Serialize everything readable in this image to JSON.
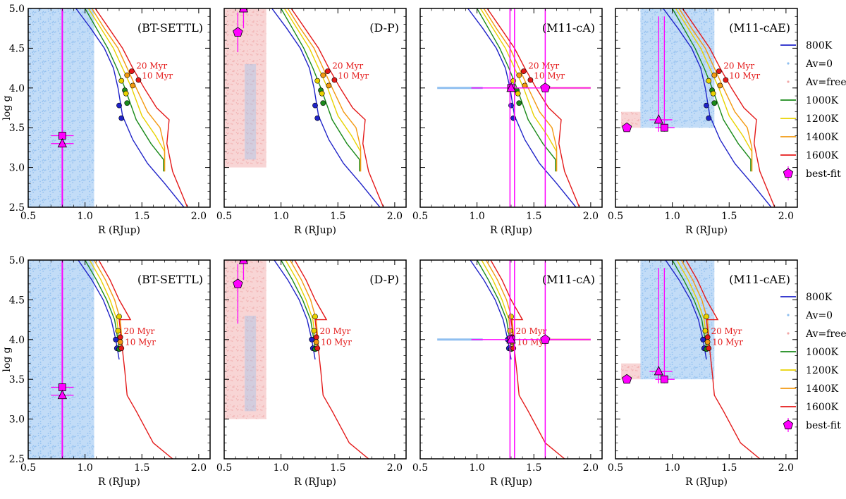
{
  "legend": {
    "entries": [
      {
        "label": "800K",
        "color": "#1f23c8",
        "kind": "line"
      },
      {
        "label": "Av=0",
        "color": "#8fbff0",
        "kind": "dot"
      },
      {
        "label": "Av=free",
        "color": "#f2a8a8",
        "kind": "dot"
      },
      {
        "label": "1000K",
        "color": "#1a8a1a",
        "kind": "line"
      },
      {
        "label": "1200K",
        "color": "#e8d200",
        "kind": "line"
      },
      {
        "label": "1400K",
        "color": "#f39a12",
        "kind": "line"
      },
      {
        "label": "1600K",
        "color": "#e41a1a",
        "kind": "line"
      },
      {
        "label": "best-fit",
        "color": "#ff00ff",
        "kind": "marker"
      }
    ]
  },
  "age_labels": [
    "20 Myr",
    "10 Myr"
  ],
  "chart_data": [
    {
      "type": "line",
      "row": 0,
      "col": 0,
      "title": "(BT-SETTL)",
      "xlabel": "R (RJup)",
      "ylabel": "log g",
      "xlim": [
        0.5,
        2.1
      ],
      "ylim": [
        2.5,
        5.0
      ],
      "xticks": [
        "0.5",
        "1.0",
        "1.5",
        "2.0"
      ],
      "yticks": [
        "2.5",
        "3.0",
        "3.5",
        "4.0",
        "4.5",
        "5.0"
      ],
      "set": "A",
      "shade": {
        "av0": [
          0.5,
          1.08,
          2.5,
          5.0
        ]
      },
      "fits": {
        "vline": 0.8,
        "square": [
          0.8,
          3.4
        ],
        "triangle": [
          0.8,
          3.3
        ],
        "xerr": 0.1
      }
    },
    {
      "type": "line",
      "row": 0,
      "col": 1,
      "title": "(D-P)",
      "xlabel": "R (RJup)",
      "ylabel": "",
      "xlim": [
        0.5,
        2.1
      ],
      "ylim": [
        2.5,
        5.0
      ],
      "xticks": [
        "0.5",
        "1.0",
        "1.5",
        "2.0"
      ],
      "yticks": [
        "2.5",
        "3.0",
        "3.5",
        "4.0",
        "4.5",
        "5.0"
      ],
      "set": "A",
      "shade": {
        "avfree": [
          0.5,
          0.87,
          3.0,
          5.0
        ]
      },
      "fits": {
        "pentagon": [
          0.62,
          4.7
        ],
        "yerr_pent": [
          4.45,
          4.95
        ],
        "square": [
          0.67,
          5.0
        ],
        "triangle": [
          0.67,
          5.0
        ]
      }
    },
    {
      "type": "line",
      "row": 0,
      "col": 2,
      "title": "(M11-cA)",
      "xlabel": "R (RJup)",
      "ylabel": "",
      "xlim": [
        0.5,
        2.1
      ],
      "ylim": [
        2.5,
        5.0
      ],
      "xticks": [
        "0.5",
        "1.0",
        "1.5",
        "2.0"
      ],
      "yticks": [
        "2.5",
        "3.0",
        "3.5",
        "4.0",
        "4.5",
        "5.0"
      ],
      "set": "A",
      "shade": {
        "band_y": 4.0,
        "band_x": [
          0.65,
          2.0
        ]
      },
      "fits": {
        "vlines": [
          1.29,
          1.33,
          1.6
        ],
        "square": [
          1.3,
          4.0
        ],
        "triangle": [
          1.3,
          4.0
        ],
        "pentagon": [
          1.6,
          4.0
        ],
        "hline": [
          0.95,
          2.0
        ]
      }
    },
    {
      "type": "line",
      "row": 0,
      "col": 3,
      "title": "(M11-cAE)",
      "xlabel": "R (RJup)",
      "ylabel": "",
      "xlim": [
        0.5,
        2.1
      ],
      "ylim": [
        2.5,
        5.0
      ],
      "xticks": [
        "0.5",
        "1.0",
        "1.5",
        "2.0"
      ],
      "yticks": [
        "2.5",
        "3.0",
        "3.5",
        "4.0",
        "4.5",
        "5.0"
      ],
      "set": "A",
      "shade": {
        "av0": [
          0.72,
          1.37,
          3.5,
          5.0
        ],
        "avfree": [
          0.55,
          0.72,
          3.5,
          3.7
        ]
      },
      "fits": {
        "pentagon": [
          0.6,
          3.5
        ],
        "triangle": [
          0.88,
          3.6
        ],
        "square": [
          0.93,
          3.5
        ],
        "vlines_short": [
          0.88,
          0.93
        ],
        "vtop": 4.9
      }
    },
    {
      "type": "line",
      "row": 1,
      "col": 0,
      "title": "(BT-SETTL)",
      "xlabel": "R (RJup)",
      "ylabel": "log g",
      "xlim": [
        0.5,
        2.1
      ],
      "ylim": [
        2.5,
        5.0
      ],
      "xticks": [
        "0.5",
        "1.0",
        "1.5",
        "2.0"
      ],
      "yticks": [
        "2.5",
        "3.0",
        "3.5",
        "4.0",
        "4.5",
        "5.0"
      ],
      "set": "B",
      "shade": {
        "av0": [
          0.5,
          1.08,
          2.5,
          5.0
        ]
      },
      "fits": {
        "vline": 0.8,
        "square": [
          0.8,
          3.4
        ],
        "triangle": [
          0.8,
          3.3
        ],
        "xerr": 0.1
      }
    },
    {
      "type": "line",
      "row": 1,
      "col": 1,
      "title": "(D-P)",
      "xlabel": "R (RJup)",
      "ylabel": "",
      "xlim": [
        0.5,
        2.1
      ],
      "ylim": [
        2.5,
        5.0
      ],
      "xticks": [
        "0.5",
        "1.0",
        "1.5",
        "2.0"
      ],
      "yticks": [
        "2.5",
        "3.0",
        "3.5",
        "4.0",
        "4.5",
        "5.0"
      ],
      "set": "B",
      "shade": {
        "avfree": [
          0.5,
          0.87,
          3.0,
          5.0
        ]
      },
      "fits": {
        "pentagon": [
          0.62,
          4.7
        ],
        "yerr_pent": [
          4.2,
          4.95
        ],
        "square": [
          0.67,
          5.0
        ],
        "triangle": [
          0.67,
          5.0
        ]
      }
    },
    {
      "type": "line",
      "row": 1,
      "col": 2,
      "title": "(M11-cA)",
      "xlabel": "R (RJup)",
      "ylabel": "",
      "xlim": [
        0.5,
        2.1
      ],
      "ylim": [
        2.5,
        5.0
      ],
      "xticks": [
        "0.5",
        "1.0",
        "1.5",
        "2.0"
      ],
      "yticks": [
        "2.5",
        "3.0",
        "3.5",
        "4.0",
        "4.5",
        "5.0"
      ],
      "set": "B",
      "shade": {
        "band_y": 4.0,
        "band_x": [
          0.65,
          2.0
        ]
      },
      "fits": {
        "vlines": [
          1.29,
          1.33,
          1.6
        ],
        "square": [
          1.3,
          4.0
        ],
        "triangle": [
          1.3,
          4.0
        ],
        "pentagon": [
          1.6,
          4.0
        ],
        "hline": [
          0.95,
          2.0
        ]
      }
    },
    {
      "type": "line",
      "row": 1,
      "col": 3,
      "title": "(M11-cAE)",
      "xlabel": "R (RJup)",
      "ylabel": "",
      "xlim": [
        0.5,
        2.1
      ],
      "ylim": [
        2.5,
        5.0
      ],
      "xticks": [
        "0.5",
        "1.0",
        "1.5",
        "2.0"
      ],
      "yticks": [
        "2.5",
        "3.0",
        "3.5",
        "4.0",
        "4.5",
        "5.0"
      ],
      "set": "B",
      "shade": {
        "av0": [
          0.72,
          1.37,
          3.5,
          5.0
        ],
        "avfree": [
          0.55,
          0.72,
          3.5,
          3.7
        ]
      },
      "fits": {
        "pentagon": [
          0.6,
          3.5
        ],
        "triangle": [
          0.88,
          3.6
        ],
        "square": [
          0.93,
          3.5
        ],
        "vlines_short": [
          0.88,
          0.93
        ],
        "vtop": 4.9
      }
    }
  ],
  "tracks": {
    "A": [
      {
        "name": "800K",
        "color": "#1f23c8",
        "x": [
          0.92,
          1.05,
          1.17,
          1.25,
          1.29,
          1.33,
          1.42,
          1.55,
          1.7,
          1.87
        ],
        "y": [
          5.0,
          4.75,
          4.5,
          4.25,
          4.0,
          3.65,
          3.35,
          3.05,
          2.8,
          2.5
        ]
      },
      {
        "name": "1000K",
        "color": "#1a8a1a",
        "x": [
          1.0,
          1.1,
          1.2,
          1.28,
          1.35,
          1.45,
          1.58,
          1.69,
          1.69
        ],
        "y": [
          5.0,
          4.75,
          4.5,
          4.25,
          4.0,
          3.6,
          3.3,
          3.1,
          2.95
        ]
      },
      {
        "name": "1200K",
        "color": "#e8d200",
        "x": [
          1.03,
          1.14,
          1.25,
          1.33,
          1.41,
          1.5,
          1.62,
          1.7,
          1.7
        ],
        "y": [
          5.0,
          4.75,
          4.5,
          4.25,
          4.0,
          3.65,
          3.4,
          3.2,
          2.95
        ]
      },
      {
        "name": "1400K",
        "color": "#f39a12",
        "x": [
          1.06,
          1.17,
          1.29,
          1.37,
          1.45,
          1.55,
          1.66,
          1.7,
          1.7
        ],
        "y": [
          5.0,
          4.75,
          4.5,
          4.25,
          4.0,
          3.7,
          3.5,
          3.25,
          2.95
        ]
      },
      {
        "name": "1600K",
        "color": "#e41a1a",
        "x": [
          1.09,
          1.21,
          1.33,
          1.42,
          1.52,
          1.63,
          1.74,
          1.72,
          1.77,
          1.9
        ],
        "y": [
          5.0,
          4.75,
          4.5,
          4.25,
          4.0,
          3.75,
          3.6,
          3.3,
          2.95,
          2.5
        ]
      }
    ],
    "B": [
      {
        "name": "800K",
        "color": "#1f23c8",
        "x": [
          0.94,
          1.06,
          1.16,
          1.23,
          1.27,
          1.3
        ],
        "y": [
          5.0,
          4.75,
          4.5,
          4.25,
          4.0,
          3.75
        ]
      },
      {
        "name": "1000K",
        "color": "#1a8a1a",
        "x": [
          1.0,
          1.1,
          1.19,
          1.26,
          1.3
        ],
        "y": [
          5.0,
          4.75,
          4.5,
          4.25,
          3.9
        ]
      },
      {
        "name": "1200K",
        "color": "#e8d200",
        "x": [
          1.04,
          1.14,
          1.22,
          1.28,
          1.31
        ],
        "y": [
          5.0,
          4.75,
          4.5,
          4.25,
          3.9
        ]
      },
      {
        "name": "1400K",
        "color": "#f39a12",
        "x": [
          1.08,
          1.18,
          1.26,
          1.31,
          1.33
        ],
        "y": [
          5.0,
          4.75,
          4.5,
          4.25,
          3.9
        ]
      },
      {
        "name": "1600K",
        "color": "#e41a1a",
        "x": [
          1.12,
          1.22,
          1.3,
          1.4,
          1.3,
          1.35,
          1.37,
          1.45,
          1.6,
          1.77
        ],
        "y": [
          5.0,
          4.75,
          4.5,
          4.25,
          4.25,
          3.6,
          3.3,
          3.1,
          2.7,
          2.5
        ]
      }
    ]
  },
  "age_points": {
    "A": [
      {
        "name": "20 Myr",
        "points": [
          [
            1.3,
            3.78,
            "#1f23c8"
          ],
          [
            1.35,
            3.97,
            "#1a8a1a"
          ],
          [
            1.32,
            4.09,
            "#e8d200"
          ],
          [
            1.37,
            4.16,
            "#f39a12"
          ],
          [
            1.41,
            4.21,
            "#e41a1a"
          ]
        ]
      },
      {
        "name": "10 Myr",
        "points": [
          [
            1.32,
            3.62,
            "#1f23c8"
          ],
          [
            1.37,
            3.81,
            "#1a8a1a"
          ],
          [
            1.36,
            3.93,
            "#e8d200"
          ],
          [
            1.42,
            4.03,
            "#f39a12"
          ],
          [
            1.47,
            4.1,
            "#e41a1a"
          ]
        ]
      }
    ],
    "B": [
      {
        "name": "20 Myr",
        "points": [
          [
            1.27,
            4.0,
            "#1f23c8"
          ],
          [
            1.29,
            4.11,
            "#e8d200"
          ],
          [
            1.3,
            4.29,
            "#e8d200"
          ],
          [
            1.31,
            4.03,
            "#e41a1a"
          ]
        ]
      },
      {
        "name": "10 Myr",
        "points": [
          [
            1.28,
            3.89,
            "#1f23c8"
          ],
          [
            1.3,
            3.88,
            "#1a8a1a"
          ],
          [
            1.31,
            3.97,
            "#f39a12"
          ],
          [
            1.32,
            3.89,
            "#e41a1a"
          ]
        ]
      }
    ]
  }
}
